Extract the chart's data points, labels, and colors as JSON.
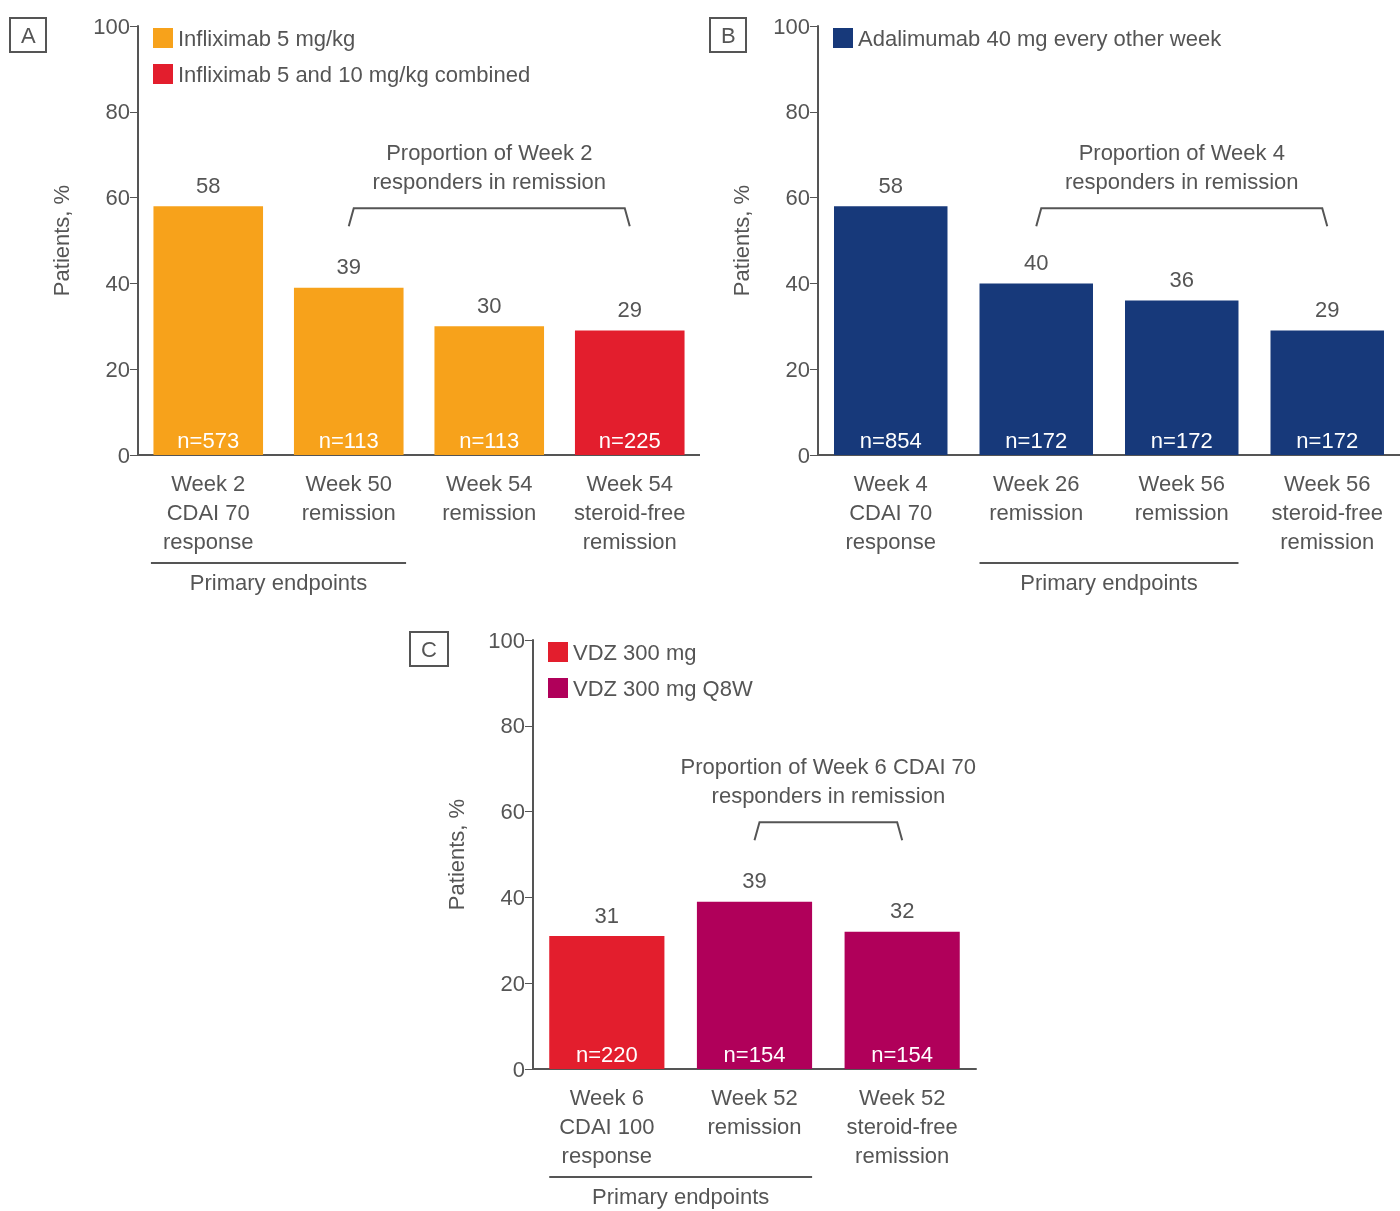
{
  "chart_data": [
    {
      "type": "bar",
      "title": "A",
      "ylabel": "Patients, %",
      "categories": [
        "Week 2\nCDAI 70\nresponse",
        "Week 50\nremission",
        "Week 54\nremission",
        "Week 54\nsteroid-free\nremission"
      ],
      "series": [
        {
          "name": "Infliximab 5 mg/kg",
          "color": "#f7a21b",
          "values": [
            58,
            39,
            30,
            null
          ]
        },
        {
          "name": "Infliximab 5 and 10 mg/kg combined",
          "color": "#e31e2d",
          "values": [
            null,
            null,
            null,
            29
          ]
        }
      ],
      "stacked": true,
      "ylim": [
        0,
        100
      ],
      "yticks": [
        0,
        20,
        40,
        60,
        80,
        100
      ],
      "data_labels": true,
      "legend": "top left",
      "annotations": [
        "Proportion of Week 2\nresponders in remission",
        "Primary endpoints",
        {
          "text": "n=573",
          "x": "Week 2\nCDAI 70\nresponse",
          "y": 0
        },
        {
          "text": "n=113",
          "x": "Week 50\nremission",
          "y": 0
        },
        {
          "text": "n=113",
          "x": "Week 54\nremission",
          "y": 0
        },
        {
          "text": "n=225",
          "x": "Week 54\nsteroid-free\nremission",
          "y": 0
        }
      ]
    },
    {
      "type": "bar",
      "title": "B",
      "ylabel": "Patients, %",
      "categories": [
        "Week 4\nCDAI 70\nresponse",
        "Week 26\nremission",
        "Week 56\nremission",
        "Week 56\nsteroid-free\nremission"
      ],
      "series": [
        {
          "name": "Adalimumab 40 mg every other week",
          "color": "#17397a",
          "values": [
            58,
            40,
            36,
            29
          ]
        }
      ],
      "stacked": true,
      "ylim": [
        0,
        100
      ],
      "yticks": [
        0,
        20,
        40,
        60,
        80,
        100
      ],
      "data_labels": true,
      "legend": "top left",
      "annotations": [
        "Proportion of Week 4\nresponders in remission",
        "Primary endpoints",
        {
          "text": "n=854",
          "x": "Week 4\nCDAI 70\nresponse",
          "y": 0
        },
        {
          "text": "n=172",
          "x": "Week 26\nremission",
          "y": 0
        },
        {
          "text": "n=172",
          "x": "Week 56\nremission",
          "y": 0
        },
        {
          "text": "n=172",
          "x": "Week 56\nsteroid-free\nremission",
          "y": 0
        }
      ]
    },
    {
      "type": "bar",
      "title": "C",
      "ylabel": "Patients, %",
      "categories": [
        "Week 6\nCDAI 100\nresponse",
        "Week 52\nremission",
        "Week 52\nsteroid-free\nremission"
      ],
      "series": [
        {
          "name": "VDZ 300 mg",
          "color": "#e31e2d",
          "values": [
            31,
            null,
            null
          ]
        },
        {
          "name": "VDZ 300 mg Q8W",
          "color": "#b0005a",
          "values": [
            null,
            39,
            32
          ]
        }
      ],
      "stacked": true,
      "ylim": [
        0,
        100
      ],
      "yticks": [
        0,
        20,
        40,
        60,
        80,
        100
      ],
      "data_labels": true,
      "legend": "top left",
      "annotations": [
        "Proportion of Week 6 CDAI 70\nresponders in remission",
        "Primary endpoints",
        {
          "text": "n=220",
          "x": "Week 6\nCDAI 100\nresponse",
          "y": 0
        },
        {
          "text": "n=154",
          "x": "Week 52\nremission",
          "y": 0
        },
        {
          "text": "n=154",
          "x": "Week 52\nsteroid-free\nremission",
          "y": 0
        }
      ]
    }
  ]
}
